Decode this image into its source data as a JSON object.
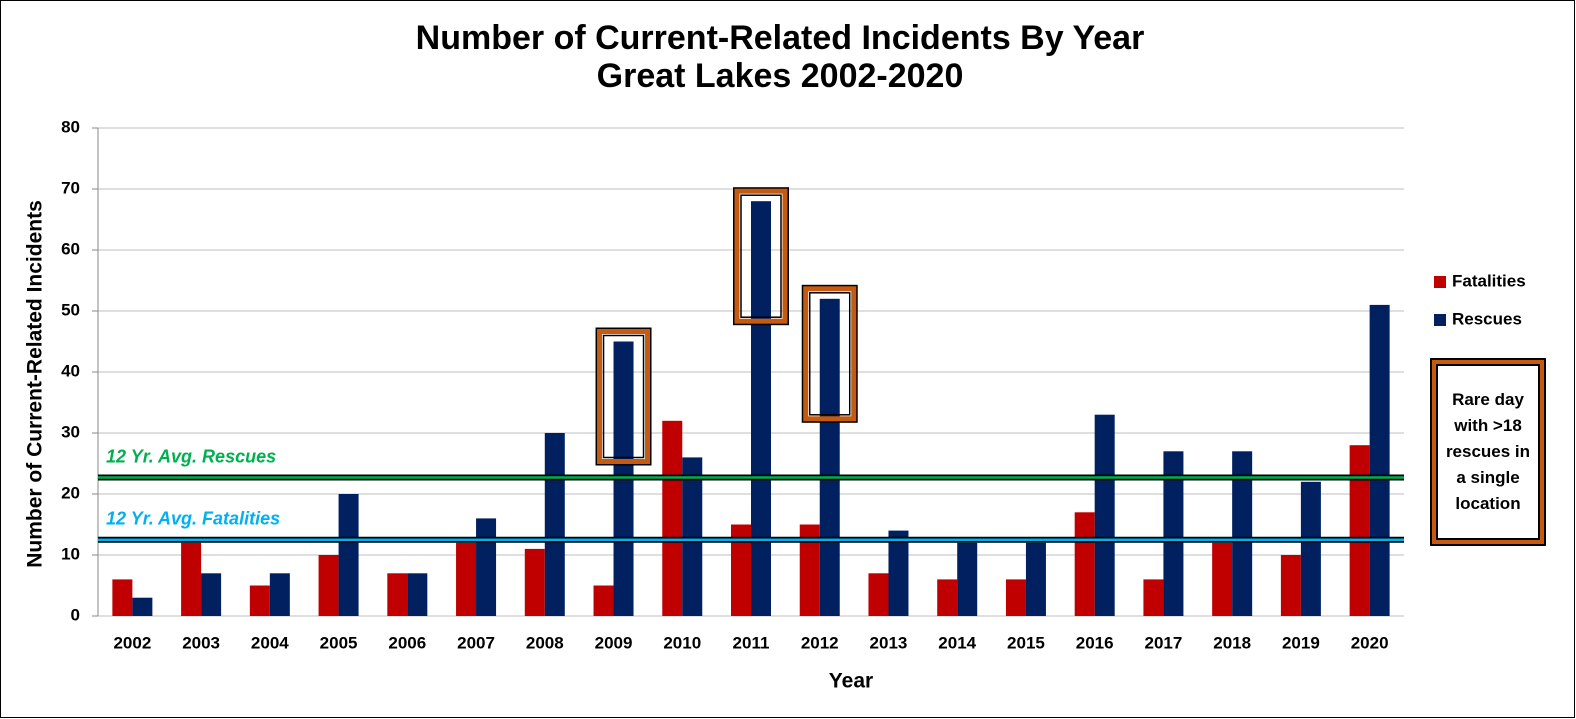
{
  "chart_data": {
    "type": "bar",
    "title": "Number of Current-Related Incidents By Year",
    "subtitle": "Great Lakes 2002-2020",
    "x_label": "Year",
    "y_label": "Number of Current-Related Incidents",
    "categories": [
      "2002",
      "2003",
      "2004",
      "2005",
      "2006",
      "2007",
      "2008",
      "2009",
      "2010",
      "2011",
      "2012",
      "2013",
      "2014",
      "2015",
      "2016",
      "2017",
      "2018",
      "2019",
      "2020"
    ],
    "series": [
      {
        "name": "Fatalities",
        "color": "#c00000",
        "values": [
          6,
          12,
          5,
          10,
          7,
          12,
          11,
          5,
          32,
          15,
          15,
          7,
          6,
          6,
          17,
          6,
          12,
          10,
          28
        ]
      },
      {
        "name": "Rescues",
        "color": "#002060",
        "values": [
          3,
          7,
          7,
          20,
          7,
          16,
          30,
          45,
          26,
          68,
          52,
          14,
          12,
          12,
          33,
          27,
          27,
          22,
          51
        ]
      }
    ],
    "ylim": [
      0,
      80
    ],
    "yticks": [
      0,
      10,
      20,
      30,
      40,
      50,
      60,
      70,
      80
    ],
    "grid": true,
    "legend": "right",
    "reference_lines": [
      {
        "label": "12 Yr. Avg. Rescues",
        "value": 22.7,
        "color": "#00b050"
      },
      {
        "label": "12 Yr. Avg. Fatalities",
        "value": 12.5,
        "color": "#00b0f0"
      }
    ],
    "highlight_categories": [
      "2009",
      "2011",
      "2012"
    ],
    "highlight_color": "#c55a11",
    "annotation": "Rare day with >18 rescues in a single location"
  }
}
